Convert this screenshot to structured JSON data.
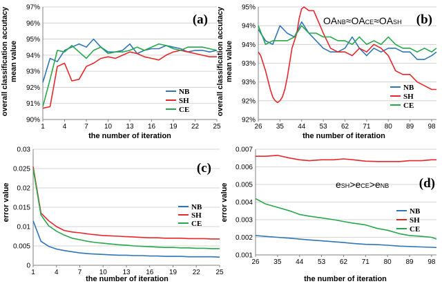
{
  "colors": {
    "NB": "#2E75B6",
    "SH": "#E8262A",
    "CE": "#24A84A"
  },
  "chart_data": [
    {
      "id": "a",
      "type": "line",
      "panel_label": "(a)",
      "xlabel": "the number of iteration",
      "ylabel_line1": "overall classification accutacy",
      "ylabel_line2": "mean value",
      "xlim": [
        1,
        25
      ],
      "ylim": [
        90,
        97
      ],
      "yticks": [
        90,
        91,
        92,
        93,
        94,
        95,
        96,
        97
      ],
      "ytick_labels": [
        "90%",
        "91%",
        "92%",
        "93%",
        "94%",
        "95%",
        "96%",
        "97%"
      ],
      "xticks": [
        1,
        4,
        7,
        10,
        13,
        16,
        19,
        22,
        25
      ],
      "xtick_labels": [
        "1",
        "4",
        "7",
        "10",
        "13",
        "16",
        "19",
        "22",
        "25"
      ],
      "legend": [
        "NB",
        "SH",
        "CE"
      ],
      "series": [
        {
          "name": "NB",
          "x": [
            1,
            2,
            3,
            4,
            5,
            6,
            7,
            8,
            9,
            10,
            11,
            12,
            13,
            14,
            15,
            16,
            17,
            18,
            19,
            20,
            21,
            22,
            23,
            24,
            25
          ],
          "y": [
            92.3,
            93.8,
            93.6,
            94.3,
            94.5,
            94.7,
            94.5,
            95.0,
            94.5,
            94.2,
            94.2,
            94.3,
            94.7,
            94.1,
            94.3,
            94.4,
            94.4,
            94.6,
            94.5,
            94.4,
            94.2,
            94.3,
            94.3,
            94.2,
            94.3
          ]
        },
        {
          "name": "SH",
          "x": [
            1,
            2,
            3,
            4,
            5,
            6,
            7,
            8,
            9,
            10,
            11,
            12,
            13,
            14,
            15,
            16,
            17,
            18,
            19,
            20,
            21,
            22,
            23,
            24,
            25
          ],
          "y": [
            90.7,
            90.8,
            93.3,
            93.5,
            92.4,
            92.5,
            93.3,
            93.5,
            93.8,
            93.9,
            93.8,
            94.0,
            94.2,
            94.1,
            93.9,
            93.8,
            93.7,
            94.0,
            94.2,
            94.3,
            94.2,
            94.1,
            94.0,
            93.9,
            93.9
          ]
        },
        {
          "name": "CE",
          "x": [
            1,
            2,
            3,
            4,
            5,
            6,
            7,
            8,
            9,
            10,
            11,
            12,
            13,
            14,
            15,
            16,
            17,
            18,
            19,
            20,
            21,
            22,
            23,
            24,
            25
          ],
          "y": [
            90.8,
            92.5,
            94.3,
            94.2,
            94.6,
            94.2,
            93.8,
            94.3,
            94.5,
            94.1,
            94.2,
            94.2,
            94.3,
            94.5,
            94.3,
            94.5,
            94.7,
            94.6,
            94.4,
            94.3,
            94.5,
            94.5,
            94.5,
            94.4,
            94.3
          ]
        }
      ]
    },
    {
      "id": "b",
      "type": "line",
      "panel_label": "(b)",
      "annotation": {
        "a1": "OA",
        "s1": "NB",
        "sep1": "≈",
        "a2": "OA",
        "s2": "CE",
        "sep2": "≈",
        "a3": "OA",
        "s3": "SH"
      },
      "xlabel": "the  number of iteration",
      "ylabel_line1": "overall classification accutacy",
      "ylabel_line2": "mean value",
      "xlim": [
        26,
        100
      ],
      "ylim": [
        92,
        95
      ],
      "yticks": [
        92,
        92.5,
        93,
        93.5,
        94,
        94.5,
        95
      ],
      "ytick_labels": [
        "92%",
        "92%",
        "93%",
        "93%",
        "94%",
        "94%",
        "95%"
      ],
      "xticks": [
        26,
        35,
        44,
        53,
        62,
        71,
        80,
        89,
        98
      ],
      "xtick_labels": [
        "26",
        "35",
        "44",
        "53",
        "62",
        "71",
        "80",
        "89",
        "98"
      ],
      "legend": [
        "NB",
        "SH",
        "CE"
      ],
      "series": [
        {
          "name": "NB",
          "x": [
            26,
            29,
            32,
            35,
            38,
            41,
            44,
            47,
            50,
            53,
            56,
            59,
            62,
            65,
            68,
            71,
            74,
            77,
            80,
            83,
            86,
            89,
            92,
            95,
            98,
            100
          ],
          "y": [
            94.4,
            94.1,
            94.0,
            94.5,
            94.3,
            94.2,
            94.6,
            94.3,
            94.1,
            93.9,
            93.8,
            93.8,
            93.9,
            94.2,
            93.9,
            93.7,
            93.9,
            93.8,
            93.9,
            93.9,
            93.8,
            93.8,
            93.6,
            93.6,
            93.7,
            93.8
          ]
        },
        {
          "name": "SH",
          "x": [
            26,
            27,
            29,
            31,
            32,
            33,
            34,
            35,
            36,
            37,
            38,
            39,
            40,
            42,
            43,
            44,
            45,
            47,
            49,
            51,
            53,
            56,
            59,
            62,
            65,
            68,
            71,
            74,
            77,
            80,
            83,
            86,
            89,
            92,
            95,
            98,
            100
          ],
          "y": [
            93.8,
            93.7,
            93.3,
            92.8,
            92.6,
            92.5,
            92.45,
            92.5,
            92.6,
            92.8,
            93.1,
            93.5,
            93.9,
            94.3,
            94.7,
            94.95,
            95.0,
            94.9,
            94.9,
            94.6,
            94.3,
            93.9,
            93.8,
            93.8,
            93.7,
            93.9,
            93.8,
            94.0,
            93.9,
            93.7,
            93.3,
            93.2,
            93.2,
            93.0,
            92.9,
            92.8,
            92.8
          ]
        },
        {
          "name": "CE",
          "x": [
            26,
            29,
            32,
            35,
            38,
            41,
            44,
            47,
            50,
            53,
            56,
            59,
            62,
            65,
            68,
            71,
            74,
            77,
            80,
            83,
            86,
            89,
            92,
            95,
            98,
            100
          ],
          "y": [
            94.5,
            94.0,
            94.1,
            94.1,
            94.1,
            94.2,
            94.5,
            94.3,
            94.3,
            94.2,
            94.2,
            94.1,
            94.1,
            94.0,
            94.2,
            94.0,
            94.1,
            94.0,
            94.2,
            94.0,
            93.9,
            93.9,
            93.8,
            93.9,
            93.8,
            93.9
          ]
        }
      ]
    },
    {
      "id": "c",
      "type": "line",
      "panel_label": "(c)",
      "xlabel": "the number of iteration",
      "ylabel": "error value",
      "xlim": [
        1,
        25
      ],
      "ylim": [
        0,
        0.03
      ],
      "yticks": [
        0,
        0.005,
        0.01,
        0.015,
        0.02,
        0.025,
        0.03
      ],
      "ytick_labels": [
        "0",
        "0.005",
        "0.01",
        "0.015",
        "0.02",
        "0.025",
        "0.03"
      ],
      "xticks": [
        1,
        4,
        7,
        10,
        13,
        16,
        19,
        22,
        25
      ],
      "xtick_labels": [
        "1",
        "4",
        "7",
        "10",
        "13",
        "16",
        "19",
        "22",
        "25"
      ],
      "legend": [
        "NB",
        "SH",
        "CE"
      ],
      "series": [
        {
          "name": "NB",
          "x": [
            1,
            2,
            3,
            4,
            5,
            6,
            7,
            8,
            9,
            10,
            11,
            12,
            13,
            14,
            15,
            16,
            17,
            18,
            19,
            20,
            21,
            22,
            23,
            24,
            25
          ],
          "y": [
            0.0115,
            0.0062,
            0.0049,
            0.0042,
            0.0038,
            0.0035,
            0.0032,
            0.003,
            0.0029,
            0.0028,
            0.0027,
            0.0026,
            0.0026,
            0.0025,
            0.0025,
            0.0024,
            0.0024,
            0.0023,
            0.0023,
            0.0023,
            0.0022,
            0.0022,
            0.0022,
            0.0022,
            0.0021
          ]
        },
        {
          "name": "SH",
          "x": [
            1,
            2,
            3,
            4,
            5,
            6,
            7,
            8,
            9,
            10,
            11,
            12,
            13,
            14,
            15,
            16,
            17,
            18,
            19,
            20,
            21,
            22,
            23,
            24,
            25
          ],
          "y": [
            0.0255,
            0.0135,
            0.0115,
            0.01,
            0.009,
            0.0086,
            0.0084,
            0.0081,
            0.0079,
            0.0077,
            0.0076,
            0.0075,
            0.0074,
            0.0073,
            0.0072,
            0.0071,
            0.0071,
            0.007,
            0.007,
            0.007,
            0.0069,
            0.0069,
            0.0069,
            0.0068,
            0.0068
          ]
        },
        {
          "name": "CE",
          "x": [
            1,
            2,
            3,
            4,
            5,
            6,
            7,
            8,
            9,
            10,
            11,
            12,
            13,
            14,
            15,
            16,
            17,
            18,
            19,
            20,
            21,
            22,
            23,
            24,
            25
          ],
          "y": [
            0.025,
            0.013,
            0.0102,
            0.0088,
            0.0078,
            0.007,
            0.0066,
            0.0062,
            0.0059,
            0.0057,
            0.0055,
            0.0053,
            0.0052,
            0.005,
            0.0049,
            0.0048,
            0.0047,
            0.0046,
            0.0046,
            0.0045,
            0.0045,
            0.0044,
            0.0044,
            0.0043,
            0.0043
          ]
        }
      ]
    },
    {
      "id": "d",
      "type": "line",
      "panel_label": "(d)",
      "annotation": {
        "a1": "e",
        "s1": "SH",
        "sep1": ">",
        "a2": "e",
        "s2": "CE",
        "sep2": ">",
        "a3": "e",
        "s3": "NB"
      },
      "xlabel": "the number of iteration",
      "ylabel": "error value",
      "xlim": [
        26,
        100
      ],
      "ylim": [
        0.001,
        0.007
      ],
      "yticks": [
        0.001,
        0.002,
        0.003,
        0.004,
        0.005,
        0.006,
        0.007
      ],
      "ytick_labels": [
        "0.001",
        "0.002",
        "0.003",
        "0.004",
        "0.005",
        "0.006",
        "0.007"
      ],
      "xticks": [
        26,
        35,
        44,
        53,
        62,
        71,
        80,
        89,
        98
      ],
      "xtick_labels": [
        "26",
        "35",
        "44",
        "53",
        "62",
        "71",
        "80",
        "89",
        "98"
      ],
      "legend": [
        "NB",
        "SH",
        "CE"
      ],
      "series": [
        {
          "name": "NB",
          "x": [
            26,
            30,
            35,
            40,
            44,
            48,
            53,
            58,
            62,
            66,
            71,
            76,
            80,
            85,
            89,
            94,
            98,
            100
          ],
          "y": [
            0.0021,
            0.00205,
            0.002,
            0.00195,
            0.0019,
            0.00185,
            0.0018,
            0.00175,
            0.0017,
            0.00165,
            0.0016,
            0.00158,
            0.00155,
            0.0015,
            0.00148,
            0.00145,
            0.00143,
            0.00142
          ]
        },
        {
          "name": "SH",
          "x": [
            26,
            30,
            35,
            40,
            44,
            48,
            53,
            58,
            62,
            66,
            71,
            76,
            80,
            85,
            89,
            94,
            98,
            100
          ],
          "y": [
            0.0066,
            0.0066,
            0.00665,
            0.0065,
            0.0064,
            0.00635,
            0.0064,
            0.0064,
            0.00645,
            0.0064,
            0.00632,
            0.0063,
            0.0063,
            0.0063,
            0.00635,
            0.00635,
            0.0064,
            0.0064
          ]
        },
        {
          "name": "CE",
          "x": [
            26,
            30,
            35,
            40,
            44,
            48,
            53,
            58,
            62,
            66,
            71,
            76,
            80,
            85,
            89,
            94,
            98,
            100
          ],
          "y": [
            0.0042,
            0.0039,
            0.0037,
            0.0035,
            0.0033,
            0.0032,
            0.0031,
            0.003,
            0.0029,
            0.0028,
            0.0027,
            0.0025,
            0.0024,
            0.0022,
            0.0021,
            0.00205,
            0.002,
            0.0019
          ]
        }
      ]
    }
  ]
}
